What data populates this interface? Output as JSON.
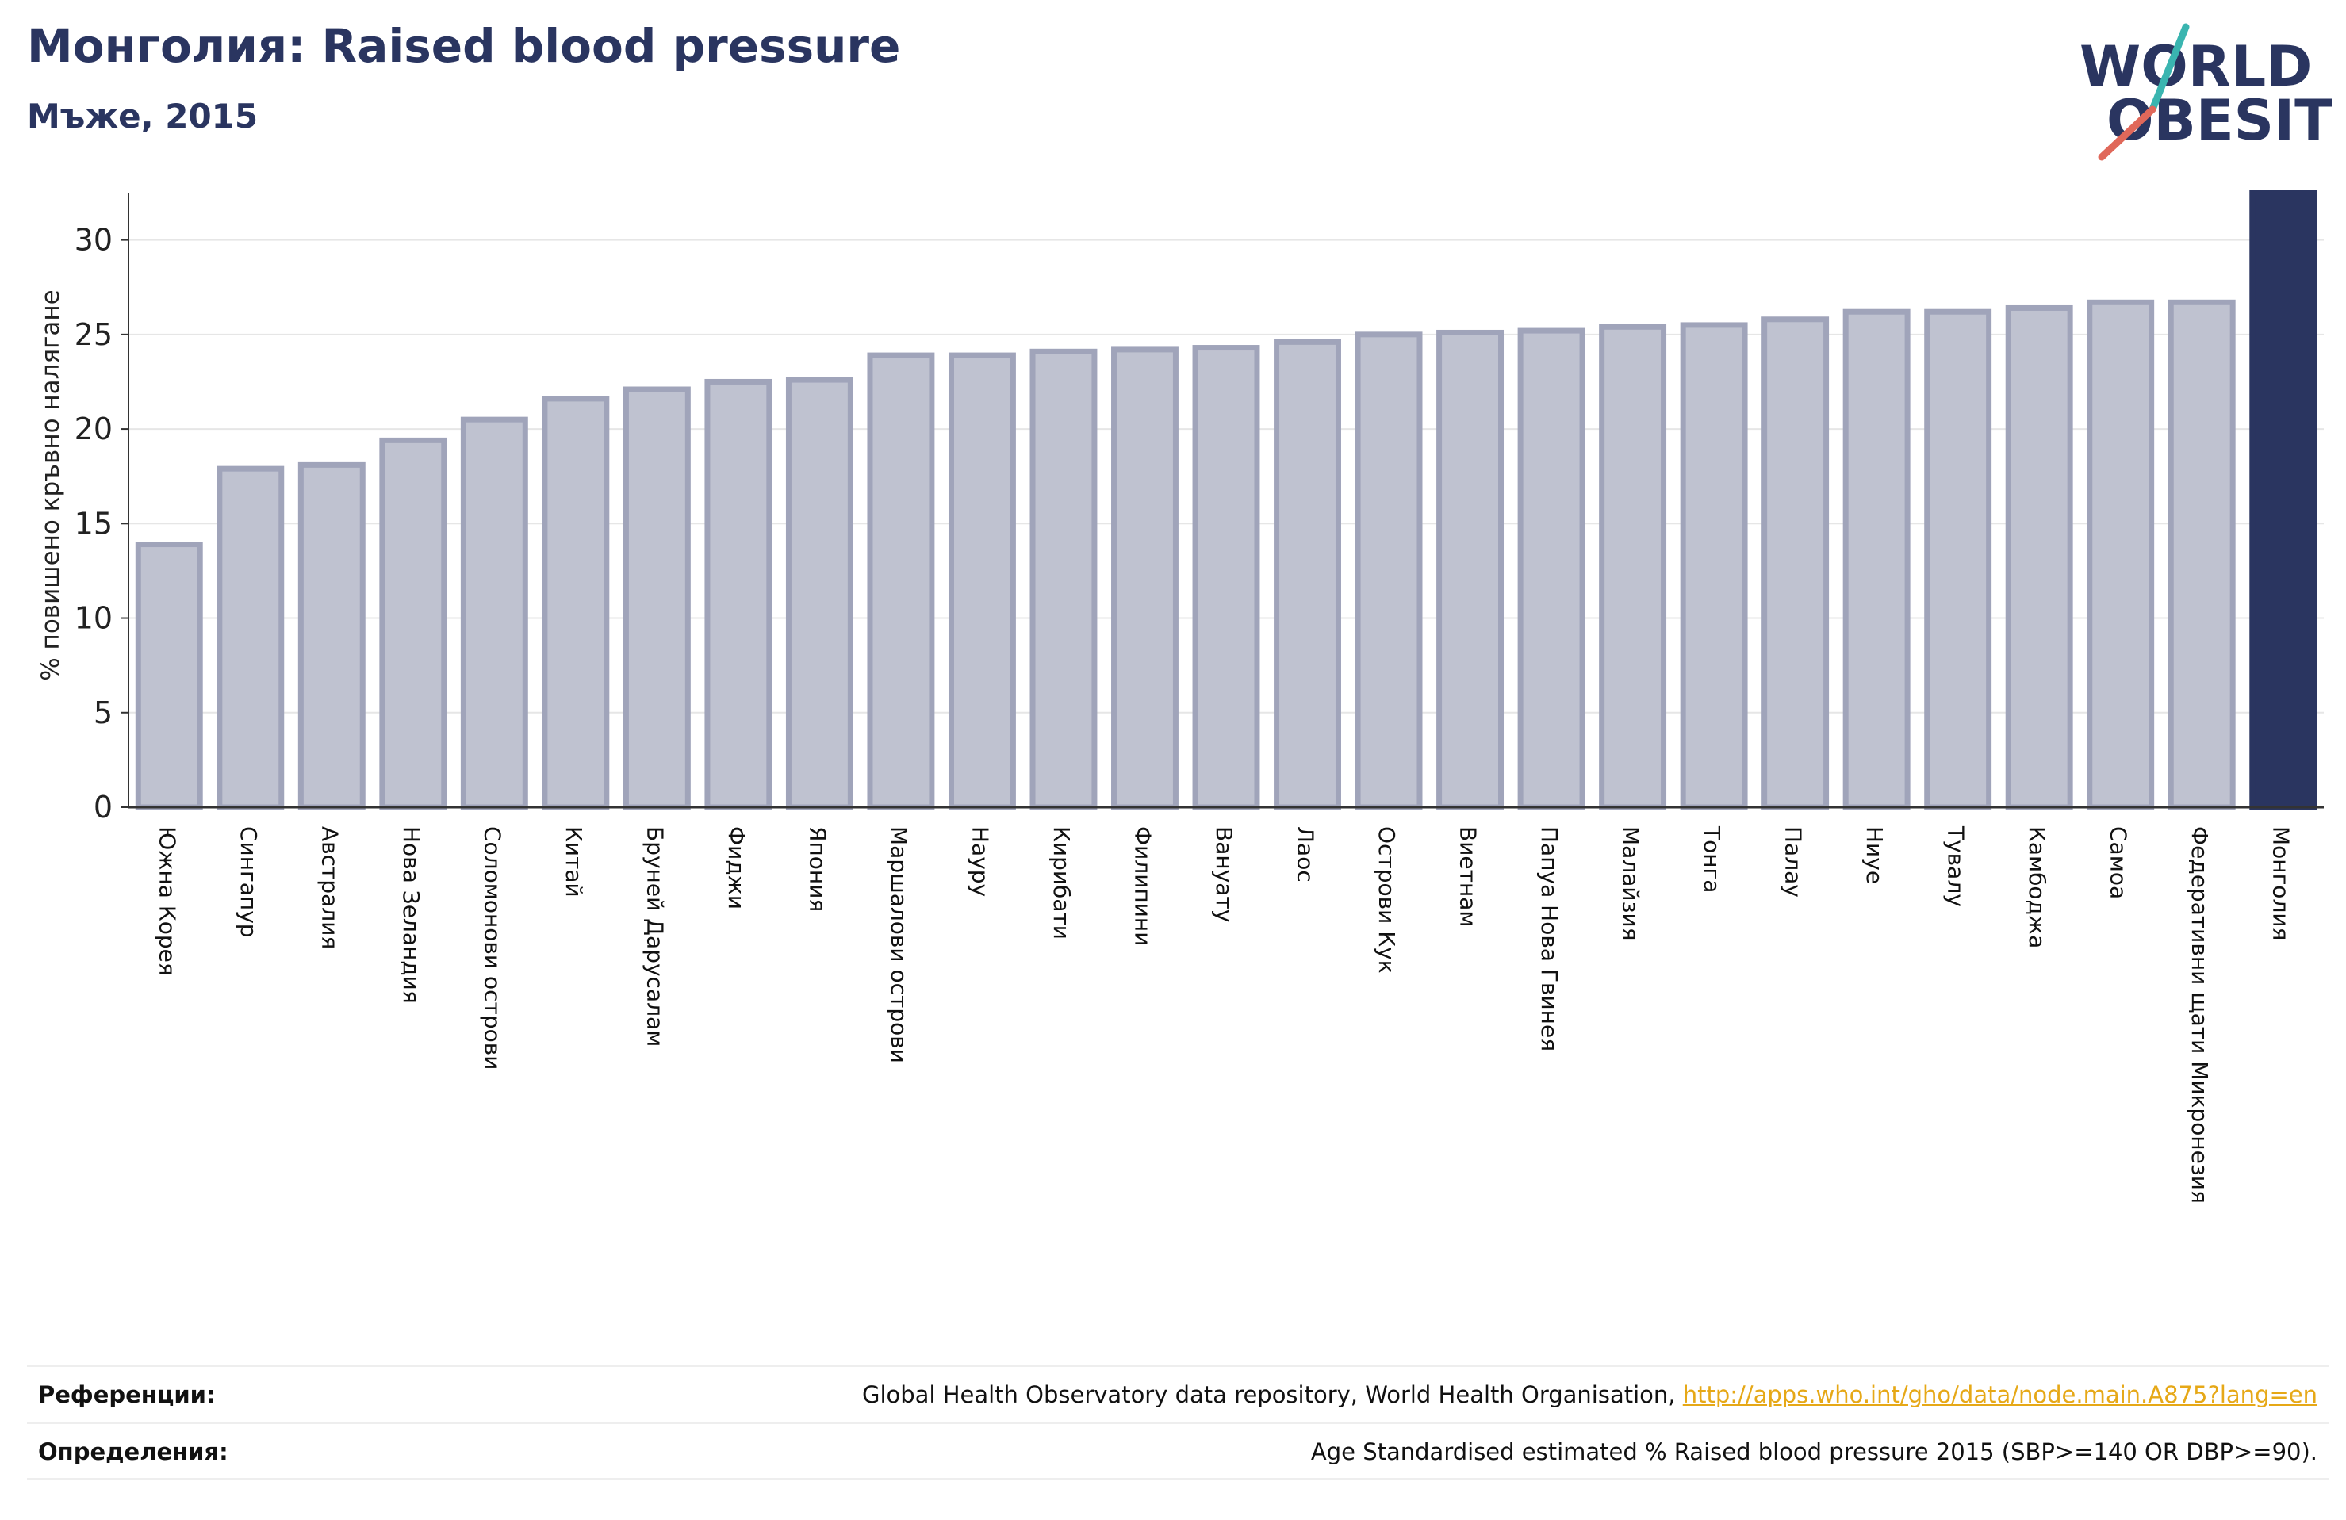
{
  "header": {
    "title": "Монголия: Raised blood pressure",
    "subtitle": "Мъже, 2015"
  },
  "logo": {
    "line1": "WORLD",
    "line2": "OBESITY",
    "colors": {
      "text": "#2a3560",
      "slash_teal": "#3ab5b0",
      "slash_red": "#e0685a"
    }
  },
  "colors": {
    "bar_fill": "#bfc2d0",
    "bar_stroke": "#a0a4ba",
    "highlight": "#2a3560",
    "grid": "#e6e6e6",
    "axis": "#333333"
  },
  "chart_data": {
    "type": "bar",
    "ylabel": "% повишено кръвно налягане",
    "ylim": [
      0,
      32.5
    ],
    "yticks": [
      0,
      5,
      10,
      15,
      20,
      25,
      30
    ],
    "grid": true,
    "highlight_category": "Монголия",
    "categories": [
      "Южна Корея",
      "Сингапур",
      "Австралия",
      "Нова Зеландия",
      "Соломонови острови",
      "Китай",
      "Бруней Дарусалам",
      "Фиджи",
      "Япония",
      "Маршалови острови",
      "Науру",
      "Кирибати",
      "Филипини",
      "Вануату",
      "Лаос",
      "Острови Кук",
      "Виетнам",
      "Папуа Нова Гвинея",
      "Малайзия",
      "Тонга",
      "Палау",
      "Ниуе",
      "Тувалу",
      "Камбоджа",
      "Самоа",
      "Федеративни щати Микронезия",
      "Монголия"
    ],
    "values": [
      13.9,
      17.9,
      18.1,
      19.4,
      20.5,
      21.6,
      22.1,
      22.5,
      22.6,
      23.9,
      23.9,
      24.1,
      24.2,
      24.3,
      24.6,
      25.0,
      25.1,
      25.2,
      25.4,
      25.5,
      25.8,
      26.2,
      26.2,
      26.4,
      26.7,
      26.7,
      32.5
    ]
  },
  "footer": {
    "references_label": "Референции:",
    "references_text": "Global Health Observatory data repository, World Health Organisation, ",
    "references_link": "http://apps.who.int/gho/data/node.main.A875?lang=en",
    "definitions_label": "Определения:",
    "definitions_text": "Age Standardised estimated % Raised blood pressure 2015 (SBP>=140 OR DBP>=90)."
  }
}
